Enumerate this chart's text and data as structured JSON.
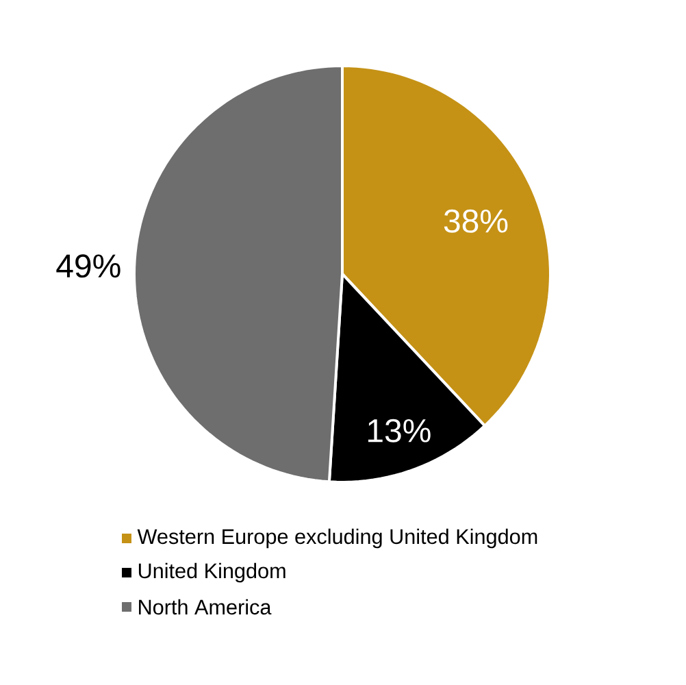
{
  "chart_data": {
    "type": "pie",
    "categories": [
      "Western Europe excluding United Kingdom",
      "United Kingdom",
      "North America"
    ],
    "values": [
      38,
      13,
      49
    ],
    "value_labels": [
      "38%",
      "13%",
      "49%"
    ],
    "colors": [
      "#c59216",
      "#000000",
      "#6e6e6e"
    ],
    "legend": "bottom"
  }
}
